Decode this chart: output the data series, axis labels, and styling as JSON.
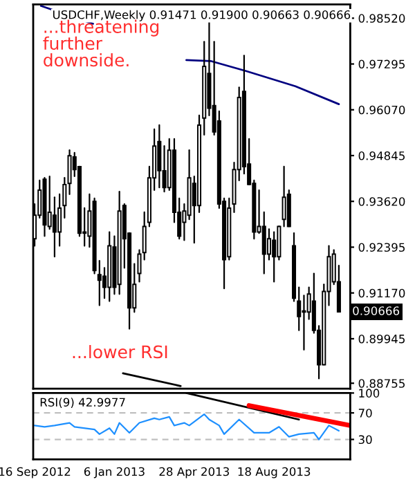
{
  "chart_data": [
    {
      "type": "candlestick",
      "title": "USDCHF,Weekly 0.91471 0.91900 0.90663 0.90666",
      "x": [
        "2012-09-16",
        "2012-09-23",
        "2012-09-30",
        "2012-10-07",
        "2012-10-14",
        "2012-10-21",
        "2012-10-28",
        "2012-11-04",
        "2012-11-11",
        "2012-11-18",
        "2012-11-25",
        "2012-12-02",
        "2012-12-09",
        "2012-12-16",
        "2012-12-23",
        "2012-12-30",
        "2013-01-06",
        "2013-01-13",
        "2013-01-20",
        "2013-01-27",
        "2013-02-03",
        "2013-02-10",
        "2013-02-17",
        "2013-02-24",
        "2013-03-03",
        "2013-03-10",
        "2013-03-17",
        "2013-03-24",
        "2013-03-31",
        "2013-04-07",
        "2013-04-14",
        "2013-04-21",
        "2013-04-28",
        "2013-05-05",
        "2013-05-12",
        "2013-05-19",
        "2013-05-26",
        "2013-06-02",
        "2013-06-09",
        "2013-06-16",
        "2013-06-23",
        "2013-06-30",
        "2013-07-07",
        "2013-07-14",
        "2013-07-21",
        "2013-07-28",
        "2013-08-04",
        "2013-08-11",
        "2013-08-18",
        "2013-08-25",
        "2013-09-01",
        "2013-09-08",
        "2013-09-15",
        "2013-09-22",
        "2013-09-29",
        "2013-10-06",
        "2013-10-13",
        "2013-10-20",
        "2013-10-27",
        "2013-11-03",
        "2013-11-10",
        "2013-11-17"
      ],
      "ohlc": [
        [
          0.9262,
          0.9355,
          0.9243,
          0.9325
        ],
        [
          0.9325,
          0.9418,
          0.9318,
          0.9392
        ],
        [
          0.9421,
          0.9425,
          0.9269,
          0.9299
        ],
        [
          0.9295,
          0.9429,
          0.9288,
          0.9333
        ],
        [
          0.9325,
          0.9373,
          0.9214,
          0.928
        ],
        [
          0.928,
          0.9381,
          0.9243,
          0.9344
        ],
        [
          0.9351,
          0.9425,
          0.9318,
          0.9407
        ],
        [
          0.941,
          0.9499,
          0.9381,
          0.9484
        ],
        [
          0.9481,
          0.9492,
          0.9429,
          0.9447
        ],
        [
          0.9455,
          0.9455,
          0.9269,
          0.9277
        ],
        [
          0.928,
          0.9344,
          0.9243,
          0.9277
        ],
        [
          0.9269,
          0.9381,
          0.924,
          0.9336
        ],
        [
          0.9362,
          0.937,
          0.9169,
          0.9177
        ],
        [
          0.9166,
          0.9203,
          0.9084,
          0.9151
        ],
        [
          0.9162,
          0.9184,
          0.9103,
          0.9132
        ],
        [
          0.9132,
          0.928,
          0.9095,
          0.9243
        ],
        [
          0.924,
          0.9269,
          0.9114,
          0.9132
        ],
        [
          0.914,
          0.9388,
          0.9114,
          0.9336
        ],
        [
          0.9351,
          0.9355,
          0.9184,
          0.9262
        ],
        [
          0.9277,
          0.9277,
          0.9021,
          0.9077
        ],
        [
          0.9077,
          0.9195,
          0.9066,
          0.914
        ],
        [
          0.9169,
          0.9232,
          0.9147,
          0.9221
        ],
        [
          0.9225,
          0.9333,
          0.9206,
          0.9295
        ],
        [
          0.9306,
          0.9455,
          0.9295,
          0.9425
        ],
        [
          0.9425,
          0.9555,
          0.9392,
          0.951
        ],
        [
          0.9522,
          0.9566,
          0.9399,
          0.9444
        ],
        [
          0.9444,
          0.951,
          0.9388,
          0.9399
        ],
        [
          0.9399,
          0.9529,
          0.9392,
          0.9499
        ],
        [
          0.9499,
          0.9529,
          0.9306,
          0.9333
        ],
        [
          0.9333,
          0.937,
          0.9262,
          0.9269
        ],
        [
          0.9306,
          0.9355,
          0.9258,
          0.9336
        ],
        [
          0.9325,
          0.9499,
          0.9314,
          0.9425
        ],
        [
          0.941,
          0.9429,
          0.9251,
          0.9351
        ],
        [
          0.9351,
          0.9592,
          0.9333,
          0.9566
        ],
        [
          0.9585,
          0.9789,
          0.954,
          0.9723
        ],
        [
          0.9704,
          0.9844,
          0.9592,
          0.9611
        ],
        [
          0.9618,
          0.9789,
          0.954,
          0.9548
        ],
        [
          0.9577,
          0.9603,
          0.9344,
          0.9355
        ],
        [
          0.9362,
          0.937,
          0.9129,
          0.9206
        ],
        [
          0.9214,
          0.937,
          0.9206,
          0.9344
        ],
        [
          0.9355,
          0.9466,
          0.9333,
          0.9447
        ],
        [
          0.9447,
          0.9667,
          0.9418,
          0.964
        ],
        [
          0.9656,
          0.9752,
          0.9436,
          0.9455
        ],
        [
          0.9462,
          0.9529,
          0.9407,
          0.9407
        ],
        [
          0.941,
          0.9418,
          0.9262,
          0.928
        ],
        [
          0.928,
          0.9392,
          0.9277,
          0.9295
        ],
        [
          0.9295,
          0.9333,
          0.9169,
          0.9221
        ],
        [
          0.9221,
          0.9288,
          0.9206,
          0.9262
        ],
        [
          0.9258,
          0.928,
          0.9147,
          0.9214
        ],
        [
          0.9214,
          0.9295,
          0.9206,
          0.9295
        ],
        [
          0.9314,
          0.9455,
          0.9295,
          0.9373
        ],
        [
          0.9381,
          0.9392,
          0.9295,
          0.9295
        ],
        [
          0.9243,
          0.9277,
          0.9095,
          0.9103
        ],
        [
          0.9095,
          0.9132,
          0.9017,
          0.9054
        ],
        [
          0.9069,
          0.911,
          0.8965,
          0.9066
        ],
        [
          0.9066,
          0.9132,
          0.9047,
          0.9114
        ],
        [
          0.9095,
          0.9169,
          0.901,
          0.9017
        ],
        [
          0.9017,
          0.9029,
          0.8888,
          0.8925
        ],
        [
          0.8925,
          0.914,
          0.8925,
          0.9121
        ],
        [
          0.9121,
          0.9243,
          0.9084,
          0.9214
        ],
        [
          0.9147,
          0.9232,
          0.914,
          0.9221
        ],
        [
          0.91471,
          0.919,
          0.90663,
          0.90666
        ]
      ],
      "series": [
        {
          "type": "line",
          "color": "#000080",
          "x": [
            "2012-09-25",
            "2012-12-07",
            "2013-02-01",
            "2013-04-17",
            "2013-05-22",
            "2013-07-09",
            "2013-09-17",
            "2013-11-17"
          ],
          "values": [
            0.9885,
            0.9837,
            null,
            0.974,
            0.9737,
            0.9711,
            0.967,
            0.9622
          ]
        },
        {
          "type": "line",
          "color": "#000000",
          "x": [
            "2013-01-18",
            "2013-04-09"
          ],
          "values": [
            0.8902,
            0.8868
          ]
        }
      ],
      "xlim": [
        "2012-09-14",
        "2013-12-03"
      ],
      "ylim": [
        0.8861,
        0.9889
      ],
      "yticks": [
        {
          "value": 0.9852,
          "label": "0.98520"
        },
        {
          "value": 0.97295,
          "label": "0.97295"
        },
        {
          "value": 0.9607,
          "label": "0.96070"
        },
        {
          "value": 0.94845,
          "label": "0.94845"
        },
        {
          "value": 0.9362,
          "label": "0.93620"
        },
        {
          "value": 0.92395,
          "label": "0.92395"
        },
        {
          "value": 0.9117,
          "label": "0.91170"
        },
        {
          "value": 0.89945,
          "label": "0.89945"
        },
        {
          "value": 0.88755,
          "label": "0.88755"
        }
      ],
      "tick_labels": "y",
      "annotations": [
        "...threatening\nfurther\ndownside.",
        "...lower RSI",
        "0.90666"
      ]
    },
    {
      "type": "line",
      "title": "RSI(9) 42.9977",
      "series": [
        {
          "color": "#1e90ff",
          "x": [
            "2012-09-16",
            "2012-09-30",
            "2012-10-14",
            "2012-11-04",
            "2012-11-11",
            "2012-12-09",
            "2012-12-16",
            "2012-12-30",
            "2013-01-06",
            "2013-01-13",
            "2013-01-27",
            "2013-02-10",
            "2013-03-03",
            "2013-03-10",
            "2013-03-24",
            "2013-03-31",
            "2013-04-14",
            "2013-04-21",
            "2013-05-12",
            "2013-05-19",
            "2013-06-02",
            "2013-06-09",
            "2013-06-30",
            "2013-07-21",
            "2013-08-11",
            "2013-08-25",
            "2013-09-08",
            "2013-09-22",
            "2013-10-13",
            "2013-10-20",
            "2013-11-03",
            "2013-11-17"
          ],
          "values": [
            51,
            49,
            51,
            55,
            49,
            45,
            38,
            47,
            38,
            55,
            40,
            55,
            62,
            60,
            64,
            51,
            55,
            51,
            68,
            60,
            51,
            38,
            60,
            40,
            40,
            49,
            34,
            38,
            40,
            30,
            51,
            43
          ]
        },
        {
          "color": "#000000",
          "x": [
            "2013-04-17",
            "2013-09-22"
          ],
          "values": [
            100,
            60
          ]
        },
        {
          "color": "#ff0000",
          "x": [
            "2013-07-14",
            "2013-12-03"
          ],
          "values": [
            81,
            51
          ]
        }
      ],
      "xlim": [
        "2012-09-14",
        "2013-12-03"
      ],
      "ylim": [
        0,
        100
      ],
      "yticks": [
        30,
        70,
        100
      ],
      "xticks": [
        {
          "value": "2012-09-16",
          "label": "16 Sep 2012"
        },
        {
          "value": "2013-01-06",
          "label": "6 Jan 2013"
        },
        {
          "value": "2013-04-28",
          "label": "28 Apr 2013"
        },
        {
          "value": "2013-08-18",
          "label": "18 Aug 2013"
        }
      ],
      "ref_lines": [
        {
          "axis": "y",
          "value": 30,
          "color": "#c0c0c0",
          "line_style": "dashed"
        },
        {
          "axis": "y",
          "value": 70,
          "color": "#c0c0c0",
          "line_style": "dashed"
        }
      ]
    }
  ]
}
